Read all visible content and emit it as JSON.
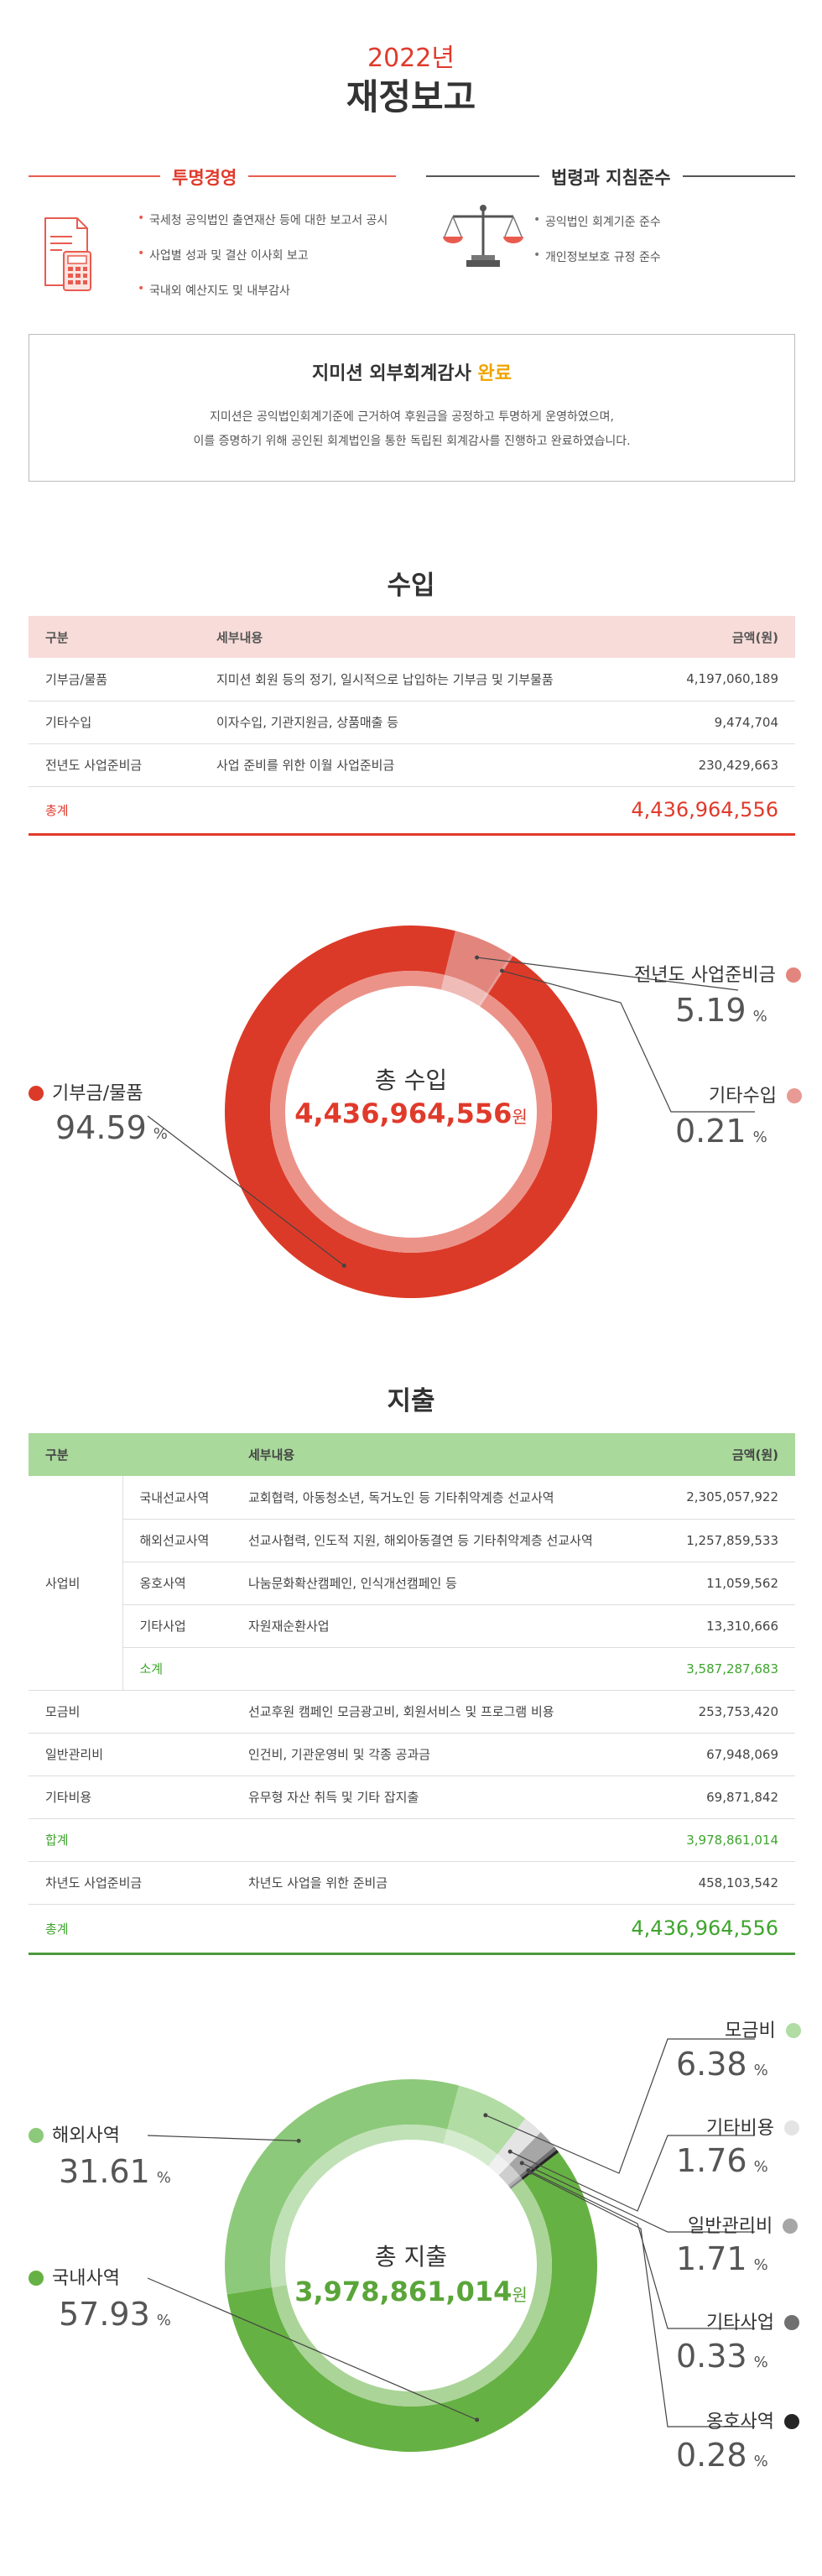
{
  "header": {
    "year": "2022년",
    "title": "재정보고"
  },
  "transparency": {
    "title": "투명경영",
    "items": [
      "국세청 공익법인 출연재산 등에 대한 보고서 공시",
      "사업별 성과 및 결산 이사회 보고",
      "국내외 예산지도 및 내부감사"
    ]
  },
  "compliance": {
    "title": "법령과 지침준수",
    "items": [
      "공익법인 회계기준 준수",
      "개인정보보호 규정 준수"
    ]
  },
  "audit": {
    "title": "지미션 외부회계감사",
    "done": "완료",
    "desc1": "지미션은 공익법인회계기준에 근거하여 후원금을 공정하고 투명하게 운영하였으며,",
    "desc2": "이를 증명하기 위해 공인된 회계법인을 통한 독립된 회계감사를 진행하고 완료하였습니다."
  },
  "income": {
    "heading": "수입",
    "columns": [
      "구분",
      "세부내용",
      "금액(원)"
    ],
    "rows": [
      {
        "cat": "기부금/물품",
        "desc": "지미션 회원 등의 정기, 일시적으로 납입하는 기부금 및 기부물품",
        "amt": "4,197,060,189"
      },
      {
        "cat": "기타수입",
        "desc": "이자수입, 기관지원금, 상품매출 등",
        "amt": "9,474,704"
      },
      {
        "cat": "전년도 사업준비금",
        "desc": "사업 준비를 위한 이월 사업준비금",
        "amt": "230,429,663"
      }
    ],
    "total_label": "총계",
    "total_amt": "4,436,964,556"
  },
  "expense": {
    "heading": "지출",
    "columns": [
      "구분",
      "세부내용",
      "금액(원)"
    ],
    "group_label": "사업비",
    "group_rows": [
      {
        "cat": "국내선교사역",
        "desc": "교회협력, 아동청소년, 독거노인 등 기타취약계층 선교사역",
        "amt": "2,305,057,922"
      },
      {
        "cat": "해외선교사역",
        "desc": "선교사협력, 인도적 지원, 해외아동결연 등 기타취약계층 선교사역",
        "amt": "1,257,859,533"
      },
      {
        "cat": "옹호사역",
        "desc": "나눔문화확산캠페인, 인식개선캠페인 등",
        "amt": "11,059,562"
      },
      {
        "cat": "기타사업",
        "desc": "자원재순환사업",
        "amt": "13,310,666"
      }
    ],
    "subtotal_label": "소계",
    "subtotal_amt": "3,587,287,683",
    "rows": [
      {
        "cat": "모금비",
        "desc": "선교후원 캠페인 모금광고비, 회원서비스 및 프로그램 비용",
        "amt": "253,753,420"
      },
      {
        "cat": "일반관리비",
        "desc": "인건비, 기관운영비 및 각종 공과금",
        "amt": "67,948,069"
      },
      {
        "cat": "기타비용",
        "desc": "유무형 자산 취득 및 기타 잡지출",
        "amt": "69,871,842"
      }
    ],
    "sum_label": "합계",
    "sum_amt": "3,978,861,014",
    "carry": {
      "cat": "차년도 사업준비금",
      "desc": "차년도 사업을 위한 준비금",
      "amt": "458,103,542"
    },
    "total_label": "총계",
    "total_amt": "4,436,964,556"
  },
  "income_donut": {
    "center_title": "총 수입",
    "center_amount": "4,436,964,556",
    "won": "원",
    "pct_unit": "%"
  },
  "expense_donut": {
    "center_title": "총 지출",
    "center_amount": "3,978,861,014",
    "won": "원",
    "pct_unit": "%"
  },
  "chart_data": [
    {
      "type": "pie",
      "title": "총 수입",
      "series": [
        {
          "name": "기부금/물품",
          "value": 94.59,
          "display": "94.59",
          "color": "#dc3a28"
        },
        {
          "name": "기타수입",
          "value": 0.21,
          "display": "0.21",
          "color": "#e89a95"
        },
        {
          "name": "전년도 사업준비금",
          "value": 5.19,
          "display": "5.19",
          "color": "#e2867d"
        }
      ]
    },
    {
      "type": "pie",
      "title": "총 지출",
      "series": [
        {
          "name": "국내사역",
          "value": 57.93,
          "display": "57.93",
          "color": "#66b143"
        },
        {
          "name": "해외사역",
          "value": 31.61,
          "display": "31.61",
          "color": "#8dc97a"
        },
        {
          "name": "모금비",
          "value": 6.38,
          "display": "6.38",
          "color": "#b1dca4"
        },
        {
          "name": "기타비용",
          "value": 1.76,
          "display": "1.76",
          "color": "#e4e4e4"
        },
        {
          "name": "일반관리비",
          "value": 1.71,
          "display": "1.71",
          "color": "#a6a6a6"
        },
        {
          "name": "기타사업",
          "value": 0.33,
          "display": "0.33",
          "color": "#707070"
        },
        {
          "name": "옹호사역",
          "value": 0.28,
          "display": "0.28",
          "color": "#252525"
        }
      ]
    }
  ]
}
